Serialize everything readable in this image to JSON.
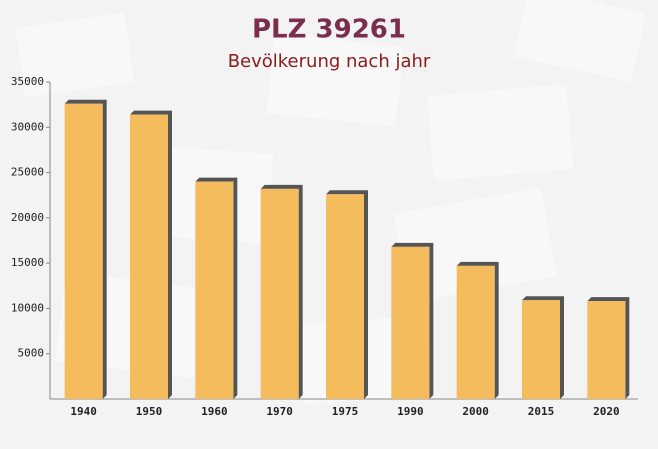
{
  "chart_data": {
    "type": "bar",
    "title": "PLZ 39261",
    "subtitle": "Bevölkerung nach jahr",
    "categories": [
      "1940",
      "1950",
      "1960",
      "1970",
      "1975",
      "1990",
      "2000",
      "2015",
      "2020"
    ],
    "values": [
      32600,
      31400,
      24000,
      23200,
      22600,
      16800,
      14700,
      10900,
      10800
    ],
    "color": "#f5bc5e",
    "ylim": [
      0,
      35000
    ],
    "yticks": [
      5000,
      10000,
      15000,
      20000,
      25000,
      30000,
      35000
    ],
    "grid": false
  }
}
